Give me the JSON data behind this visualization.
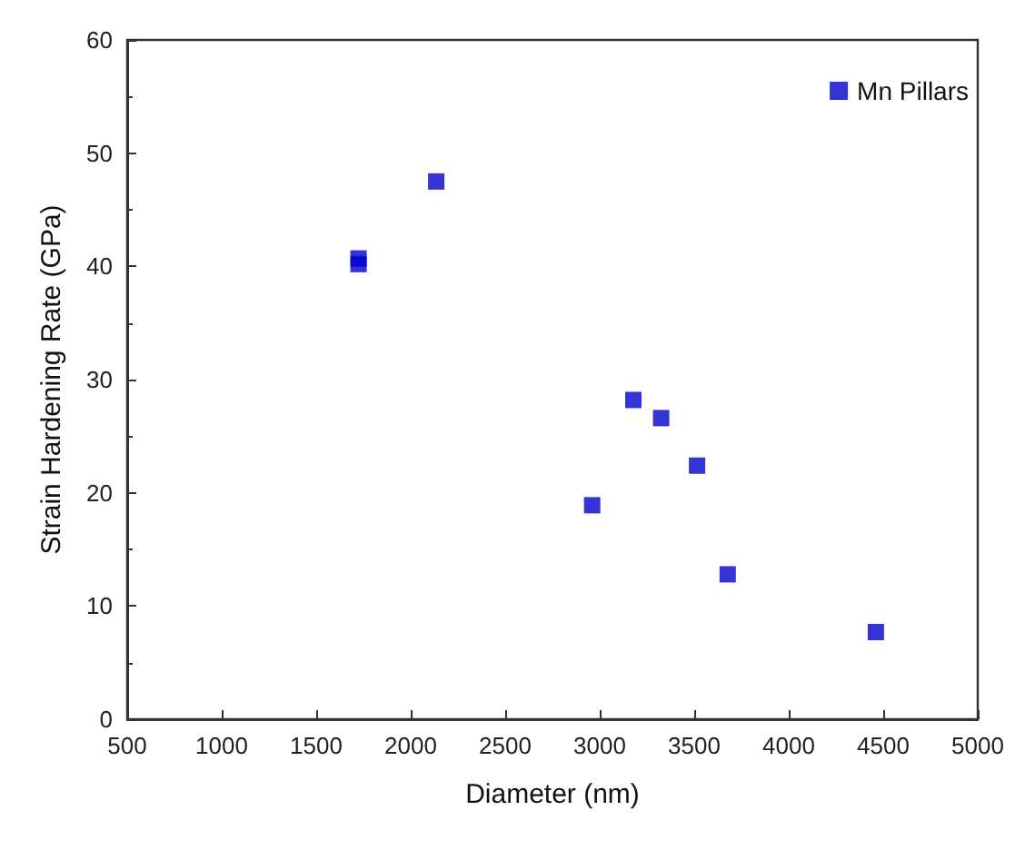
{
  "chart_data": {
    "type": "scatter",
    "xlabel": "Diameter (nm)",
    "ylabel": "Strain Hardening Rate (GPa)",
    "x": [
      1724,
      1724,
      2135,
      2960,
      3178,
      3325,
      3515,
      3677,
      4461
    ],
    "series": [
      {
        "name": "Mn Pillars",
        "color": "#0000cc",
        "values": [
          40.7,
          40.2,
          47.5,
          18.9,
          28.2,
          26.6,
          22.4,
          12.8,
          7.7
        ]
      }
    ],
    "xlim": [
      500,
      5000
    ],
    "xticks": [
      500,
      1000,
      1500,
      2000,
      2500,
      3000,
      3500,
      4000,
      4500,
      5000
    ],
    "ylim": [
      0,
      60
    ],
    "yticks": [
      0,
      10,
      20,
      30,
      40,
      50,
      60
    ],
    "grid": false,
    "legend": "top right",
    "marker": "square"
  }
}
